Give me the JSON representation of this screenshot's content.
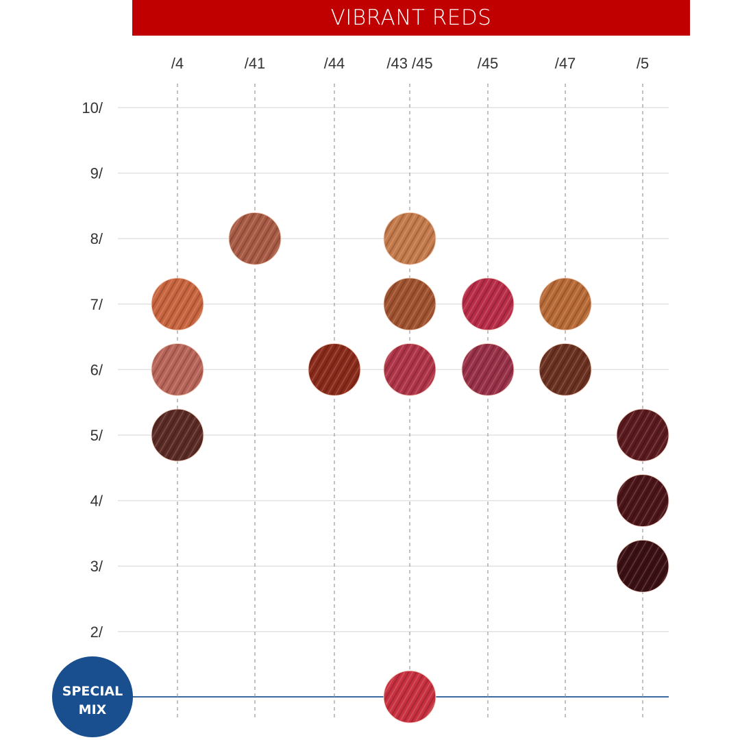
{
  "title": "VIBRANT REDS",
  "special_mix_label": [
    "SPECIAL",
    "MIX"
  ],
  "colors": {
    "banner": "#c00000",
    "special_mix": "#1a4f8f",
    "special_line": "#3a6aa0"
  },
  "chart_data": {
    "type": "scatter",
    "title": "VIBRANT REDS",
    "columns": [
      "/4",
      "/41",
      "/44",
      "/43 /45",
      "/45",
      "/47",
      "/5"
    ],
    "rows": [
      "10/",
      "9/",
      "8/",
      "7/",
      "6/",
      "5/",
      "4/",
      "3/",
      "2/"
    ],
    "grid": true,
    "swatches": [
      {
        "column": "/4",
        "level": 7,
        "color": "#c8643e"
      },
      {
        "column": "/4",
        "level": 6,
        "color": "#b86458"
      },
      {
        "column": "/4",
        "level": 5,
        "color": "#5a2a24"
      },
      {
        "column": "/41",
        "level": 8,
        "color": "#a85a44"
      },
      {
        "column": "/44",
        "level": 6,
        "color": "#8a2a1a"
      },
      {
        "column": "/43 /45",
        "level": 8,
        "color": "#c47a4a"
      },
      {
        "column": "/43 /45",
        "level": 7,
        "color": "#a0522e"
      },
      {
        "column": "/43 /45",
        "level": 6,
        "color": "#b03448"
      },
      {
        "column": "/43 /45",
        "level": "special",
        "color": "#c83040"
      },
      {
        "column": "/45",
        "level": 7,
        "color": "#b82c48"
      },
      {
        "column": "/45",
        "level": 6,
        "color": "#983048"
      },
      {
        "column": "/47",
        "level": 7,
        "color": "#b86a36"
      },
      {
        "column": "/47",
        "level": 6,
        "color": "#6a3020"
      },
      {
        "column": "/5",
        "level": 5,
        "color": "#5a1a1e"
      },
      {
        "column": "/5",
        "level": 4,
        "color": "#4a1418"
      },
      {
        "column": "/5",
        "level": 3,
        "color": "#3a1014"
      }
    ]
  }
}
